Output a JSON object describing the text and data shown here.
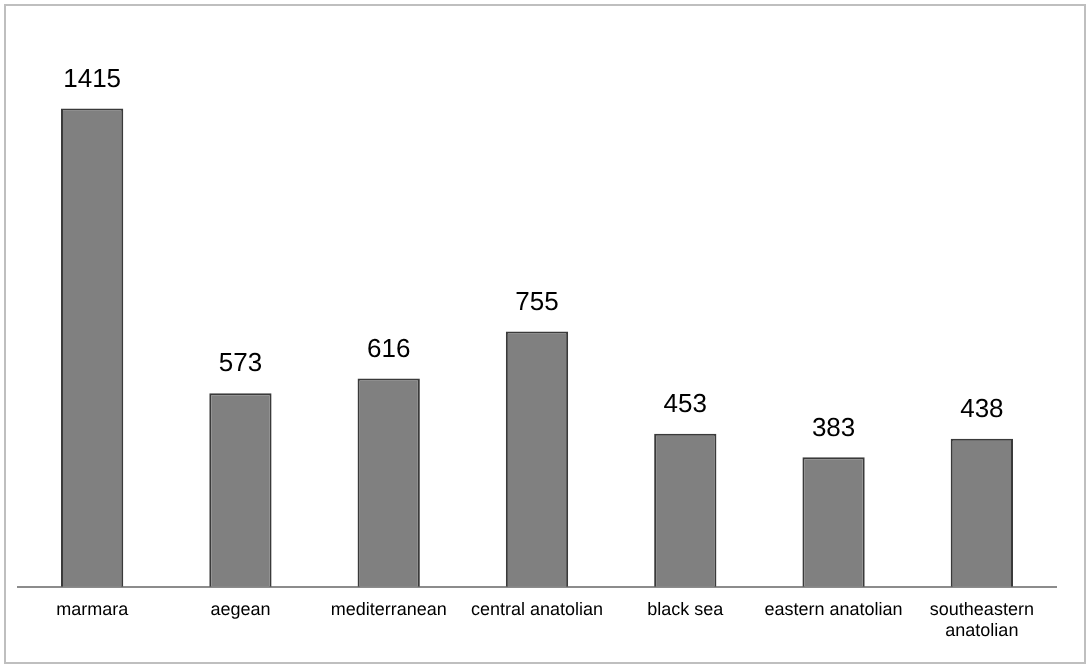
{
  "chart_data": {
    "type": "bar",
    "categories": [
      "marmara",
      "aegean",
      "mediterranean",
      "central anatolian",
      "black sea",
      "eastern anatolian",
      "southeastern anatolian"
    ],
    "values": [
      1415,
      573,
      616,
      755,
      453,
      383,
      438
    ],
    "color": "#808080",
    "data_labels": true,
    "grid": false,
    "legend": false
  }
}
